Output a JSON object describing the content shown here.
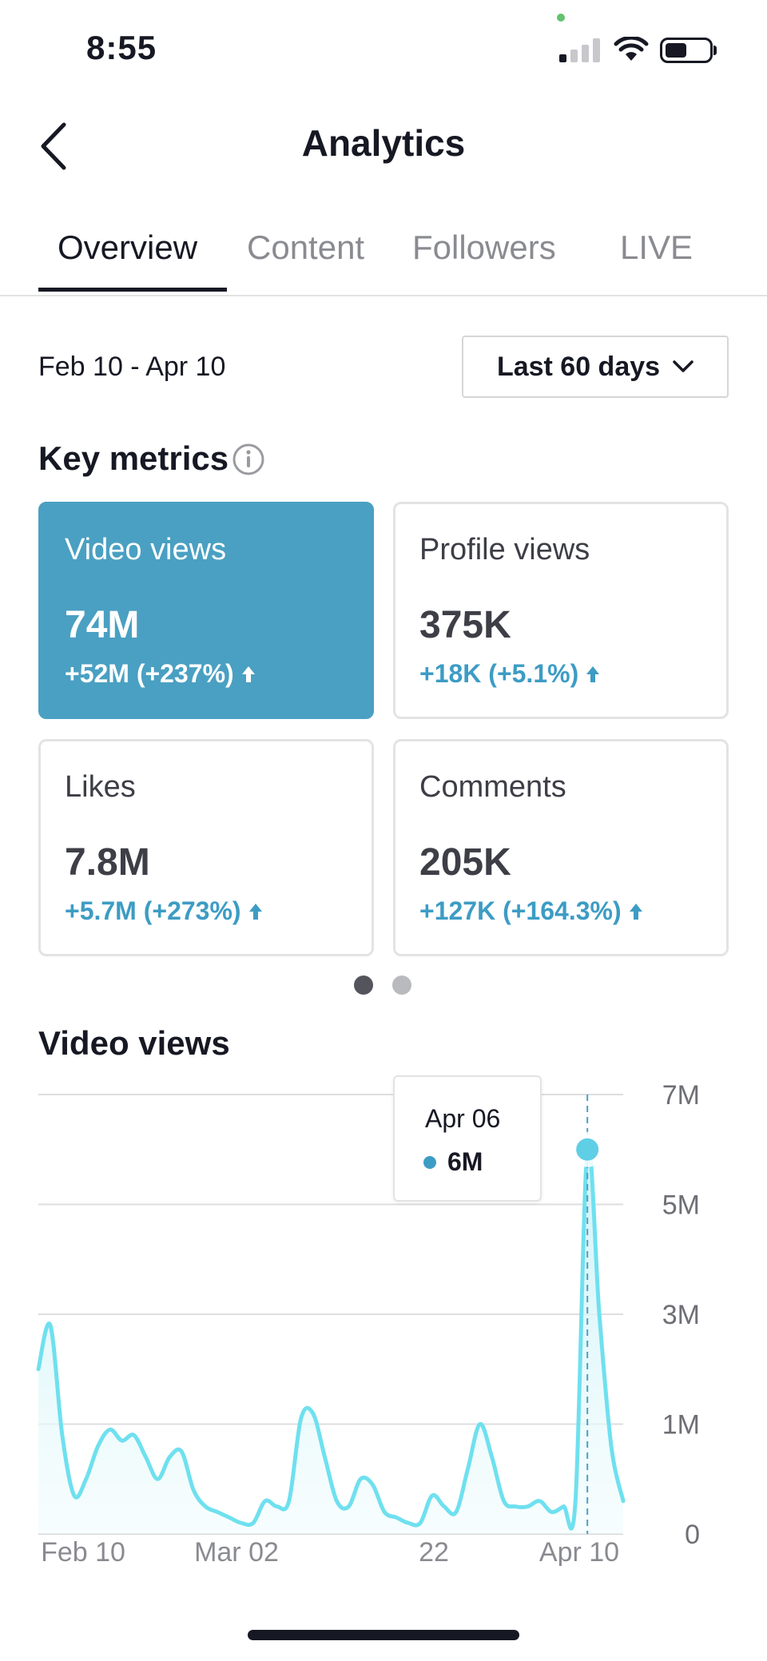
{
  "status_bar": {
    "time": "8:55"
  },
  "header": {
    "title": "Analytics"
  },
  "tabs": [
    {
      "label": "Overview",
      "active": true
    },
    {
      "label": "Content",
      "active": false
    },
    {
      "label": "Followers",
      "active": false
    },
    {
      "label": "LIVE",
      "active": false
    }
  ],
  "date_range": "Feb 10 - Apr 10",
  "range_selector": {
    "label": "Last 60 days"
  },
  "key_metrics": {
    "title": "Key metrics",
    "cards": [
      {
        "label": "Video views",
        "value": "74M",
        "change": "+52M (+237%)",
        "selected": true
      },
      {
        "label": "Profile views",
        "value": "375K",
        "change": "+18K (+5.1%)",
        "selected": false
      },
      {
        "label": "Likes",
        "value": "7.8M",
        "change": "+5.7M (+273%)",
        "selected": false
      },
      {
        "label": "Comments",
        "value": "205K",
        "change": "+127K (+164.3%)",
        "selected": false
      }
    ],
    "page_count": 2,
    "current_page": 1
  },
  "colors": {
    "accent": "#4aa0c2",
    "line": "#6fe0ef",
    "area": "#e6f8fb",
    "positive": "#3d9cc4"
  },
  "chart_data": {
    "type": "area",
    "title": "Video views",
    "ylim": [
      0,
      7000000
    ],
    "y_ticks": [
      "0",
      "1M",
      "3M",
      "5M",
      "7M"
    ],
    "x_ticks": [
      "Feb 10",
      "Mar 02",
      "22",
      "Apr 10"
    ],
    "series": [
      {
        "values": [
          2000000,
          2800000,
          900000,
          350000,
          500000,
          800000,
          950000,
          850000,
          900000,
          700000,
          500000,
          700000,
          750000,
          400000,
          250000,
          200000,
          150000,
          100000,
          100000,
          300000,
          250000,
          300000,
          1100000,
          1200000,
          700000,
          300000,
          250000,
          500000,
          450000,
          200000,
          150000,
          100000,
          100000,
          350000,
          250000,
          200000,
          600000,
          1000000,
          700000,
          300000,
          250000,
          250000,
          300000,
          200000,
          250000,
          300000,
          6000000,
          3000000,
          800000,
          300000
        ]
      }
    ],
    "tooltip": {
      "date": "Apr 06",
      "value": "6M",
      "index": 46
    }
  }
}
